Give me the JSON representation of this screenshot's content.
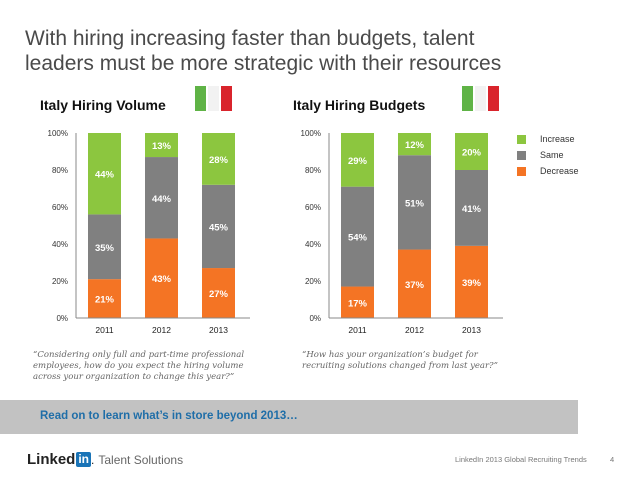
{
  "slide": {
    "title_line1": "With hiring increasing faster than budgets, talent",
    "title_line2": "leaders must be more strategic with their resources",
    "banner_text": "Read on to learn what’s in store beyond 2013…",
    "logo": {
      "linked": "Linked",
      "in": "in",
      "dot": ".",
      "product": "Talent Solutions"
    },
    "footer_text": "LinkedIn 2013 Global Recruiting Trends",
    "page_number": "4"
  },
  "legend": [
    {
      "label": "Increase",
      "color": "#8cc63f"
    },
    {
      "label": "Same",
      "color": "#808080"
    },
    {
      "label": "Decrease",
      "color": "#f47424"
    }
  ],
  "chart_data": [
    {
      "type": "bar",
      "stacked": true,
      "title": "Italy Hiring Volume",
      "categories": [
        "2011",
        "2012",
        "2013"
      ],
      "series": [
        {
          "name": "Decrease",
          "values": [
            21,
            43,
            27
          ],
          "color": "#f47424"
        },
        {
          "name": "Same",
          "values": [
            35,
            44,
            45
          ],
          "color": "#808080"
        },
        {
          "name": "Increase",
          "values": [
            44,
            13,
            28
          ],
          "color": "#8cc63f"
        }
      ],
      "yticks": [
        "0%",
        "20%",
        "40%",
        "60%",
        "80%",
        "100%"
      ],
      "ylim": [
        0,
        100
      ],
      "xlabel": "",
      "ylabel": "",
      "legend": "right",
      "question": "“Considering only full and part-time professional employees, how do you expect the hiring volume across your organization to change this year?”"
    },
    {
      "type": "bar",
      "stacked": true,
      "title": "Italy Hiring Budgets",
      "categories": [
        "2011",
        "2012",
        "2013"
      ],
      "series": [
        {
          "name": "Decrease",
          "values": [
            17,
            37,
            39
          ],
          "color": "#f47424"
        },
        {
          "name": "Same",
          "values": [
            54,
            51,
            41
          ],
          "color": "#808080"
        },
        {
          "name": "Increase",
          "values": [
            29,
            12,
            20
          ],
          "color": "#8cc63f"
        }
      ],
      "yticks": [
        "0%",
        "20%",
        "40%",
        "60%",
        "80%",
        "100%"
      ],
      "ylim": [
        0,
        100
      ],
      "xlabel": "",
      "ylabel": "",
      "legend": "right",
      "question": "“How has your organization’s budget for recruiting solutions changed from last year?”"
    }
  ]
}
